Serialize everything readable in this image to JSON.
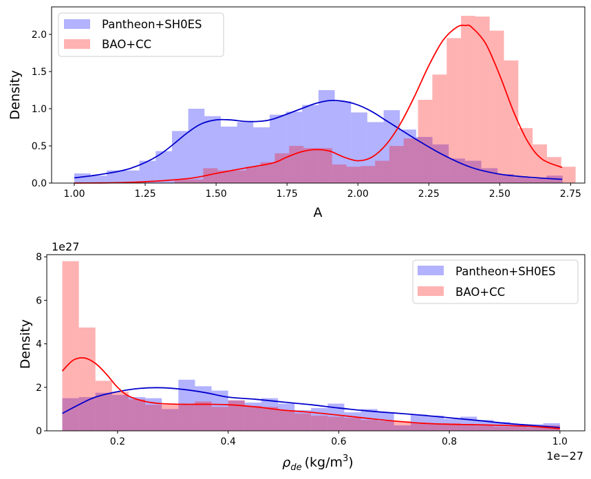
{
  "chart_data": [
    {
      "type": "histogram+kde",
      "xlabel": "A",
      "ylabel": "Density",
      "xlim": [
        0.92,
        2.8
      ],
      "ylim": [
        0,
        2.37
      ],
      "xticks": [
        1.0,
        1.25,
        1.5,
        1.75,
        2.0,
        2.25,
        2.5,
        2.75
      ],
      "xtick_labels": [
        "1.00",
        "1.25",
        "1.50",
        "1.75",
        "2.00",
        "2.25",
        "2.50",
        "2.75"
      ],
      "yticks": [
        0.0,
        0.5,
        1.0,
        1.5,
        2.0
      ],
      "ytick_labels": [
        "0.0",
        "0.5",
        "1.0",
        "1.5",
        "2.0"
      ],
      "offset_x": "",
      "offset_y": "",
      "legend": "top-left",
      "bins": {
        "start": 1.0,
        "width": 0.0574,
        "count": 30
      },
      "series": [
        {
          "name": "Pantheon+SH0ES",
          "color": "#0000cc",
          "hist_color": "#0000ff",
          "hist": [
            0.13,
            0.1,
            0.17,
            0.17,
            0.3,
            0.43,
            0.7,
            1.0,
            0.9,
            0.76,
            0.82,
            0.75,
            0.92,
            0.96,
            1.05,
            1.25,
            1.1,
            0.95,
            0.82,
            0.98,
            0.72,
            0.62,
            0.52,
            0.33,
            0.3,
            0.2,
            0.12,
            0.08,
            0.06,
            0.1
          ],
          "kde_x": [
            1.0,
            1.1,
            1.2,
            1.3,
            1.4,
            1.45,
            1.5,
            1.55,
            1.6,
            1.65,
            1.7,
            1.8,
            1.85,
            1.9,
            1.95,
            2.0,
            2.05,
            2.1,
            2.15,
            2.2,
            2.3,
            2.4,
            2.5,
            2.6,
            2.72
          ],
          "kde_y": [
            0.07,
            0.12,
            0.2,
            0.38,
            0.68,
            0.8,
            0.85,
            0.85,
            0.83,
            0.83,
            0.86,
            1.0,
            1.07,
            1.11,
            1.1,
            1.05,
            0.96,
            0.84,
            0.72,
            0.6,
            0.38,
            0.21,
            0.12,
            0.08,
            0.05
          ]
        },
        {
          "name": "BAO+CC",
          "color": "#ff0000",
          "hist_color": "#ff0000",
          "hist": [
            0.0,
            0.0,
            0.0,
            0.0,
            0.0,
            0.0,
            0.0,
            0.05,
            0.05,
            0.2,
            0.17,
            0.17,
            0.22,
            0.28,
            0.4,
            0.5,
            0.47,
            0.47,
            0.25,
            0.22,
            0.23,
            0.3,
            0.5,
            0.6,
            1.12,
            1.46,
            1.95,
            2.25,
            2.24,
            2.05,
            1.65,
            0.74,
            0.52,
            0.35,
            0.22,
            0.08
          ],
          "hist_bins": {
            "start": 1.0,
            "width": 0.0505
          },
          "kde_x": [
            1.0,
            1.2,
            1.4,
            1.5,
            1.6,
            1.7,
            1.75,
            1.8,
            1.85,
            1.9,
            1.95,
            2.0,
            2.05,
            2.1,
            2.15,
            2.2,
            2.25,
            2.3,
            2.35,
            2.38,
            2.4,
            2.45,
            2.5,
            2.55,
            2.6,
            2.65,
            2.72
          ],
          "kde_y": [
            0.0,
            0.01,
            0.06,
            0.13,
            0.2,
            0.27,
            0.35,
            0.42,
            0.45,
            0.43,
            0.35,
            0.3,
            0.35,
            0.52,
            0.8,
            1.17,
            1.58,
            1.92,
            2.1,
            2.12,
            2.1,
            1.88,
            1.45,
            0.95,
            0.55,
            0.32,
            0.21
          ]
        }
      ]
    },
    {
      "type": "histogram+kde",
      "xlabel_main": "ρ",
      "xlabel_sub": "de",
      "xlabel_unit": "(kg/m",
      "xlabel_sup": "3",
      "xlabel_close": ")",
      "ylabel": "Density",
      "xlim": [
        0.072,
        1.045
      ],
      "ylim": [
        0,
        8.1
      ],
      "xticks": [
        0.2,
        0.4,
        0.6,
        0.8,
        1.0
      ],
      "xtick_labels": [
        "0.2",
        "0.4",
        "0.6",
        "0.8",
        "1.0"
      ],
      "yticks": [
        0,
        2,
        4,
        6,
        8
      ],
      "ytick_labels": [
        "0",
        "2",
        "4",
        "6",
        "8"
      ],
      "offset_x": "1e−27",
      "offset_y": "1e27",
      "legend": "top-right",
      "bins": {
        "start": 0.1,
        "width": 0.03,
        "count": 30
      },
      "series": [
        {
          "name": "Pantheon+SH0ES",
          "color": "#0000cc",
          "hist_color": "#0000ff",
          "hist": [
            1.5,
            1.55,
            1.75,
            1.65,
            1.55,
            1.5,
            1.0,
            2.35,
            2.05,
            1.85,
            1.4,
            1.3,
            1.5,
            1.25,
            0.95,
            1.05,
            1.25,
            0.85,
            1.0,
            0.85,
            0.25,
            0.75,
            0.7,
            0.55,
            0.65,
            0.5,
            0.4,
            0.3,
            0.3,
            0.35
          ],
          "kde_x": [
            0.1,
            0.13,
            0.16,
            0.2,
            0.24,
            0.28,
            0.32,
            0.36,
            0.4,
            0.45,
            0.5,
            0.55,
            0.6,
            0.65,
            0.7,
            0.75,
            0.8,
            0.85,
            0.9,
            0.95,
            1.0
          ],
          "kde_y": [
            0.8,
            1.2,
            1.55,
            1.8,
            1.95,
            1.98,
            1.9,
            1.75,
            1.55,
            1.45,
            1.32,
            1.2,
            1.05,
            0.92,
            0.82,
            0.72,
            0.6,
            0.48,
            0.35,
            0.25,
            0.15
          ]
        },
        {
          "name": "BAO+CC",
          "color": "#ff0000",
          "hist_color": "#ff0000",
          "hist": [
            7.8,
            4.75,
            2.3,
            1.8,
            1.45,
            1.2,
            1.2,
            1.2,
            1.35,
            1.1,
            1.4,
            1.15,
            1.1,
            0.95,
            0.8,
            0.7,
            0.65,
            0.6,
            0.5,
            0.45,
            0.45,
            0.35,
            0.3,
            0.35,
            0.25,
            0.25,
            0.2,
            0.2,
            0.15,
            0.25
          ],
          "kde_x": [
            0.1,
            0.12,
            0.14,
            0.16,
            0.18,
            0.2,
            0.22,
            0.25,
            0.28,
            0.32,
            0.36,
            0.4,
            0.45,
            0.5,
            0.55,
            0.6,
            0.65,
            0.7,
            0.75,
            0.8,
            0.85,
            0.9,
            0.95,
            1.0
          ],
          "kde_y": [
            2.75,
            3.25,
            3.35,
            3.1,
            2.6,
            2.0,
            1.6,
            1.35,
            1.25,
            1.22,
            1.22,
            1.2,
            1.1,
            0.95,
            0.85,
            0.72,
            0.58,
            0.45,
            0.35,
            0.3,
            0.28,
            0.25,
            0.2,
            0.1
          ]
        }
      ]
    }
  ]
}
